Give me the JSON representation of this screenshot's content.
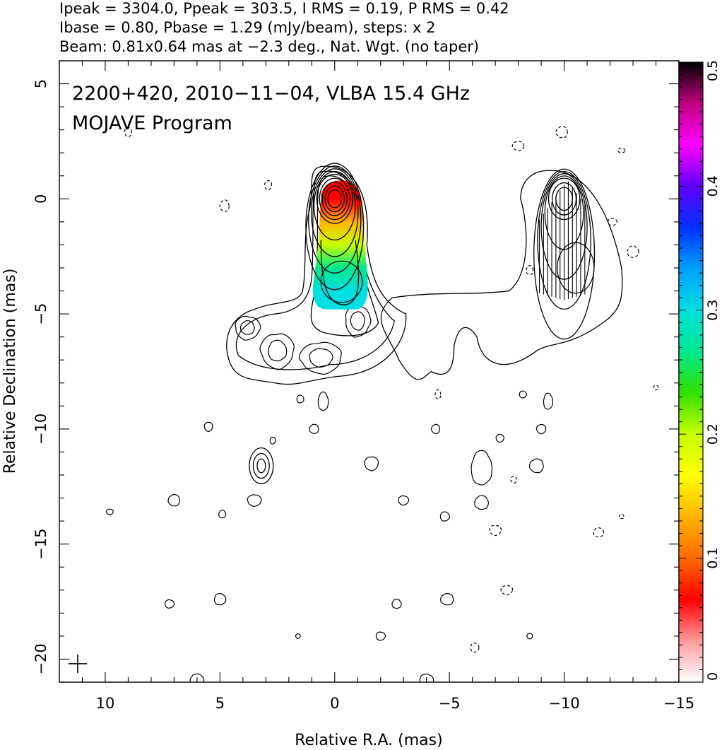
{
  "header": {
    "line1": "Ipeak = 3304.0, Ppeak = 303.5, I RMS = 0.19, P RMS = 0.42",
    "line2": "Ibase = 0.80, Pbase = 1.29 (mJy/beam), steps: x 2",
    "line3": "Beam: 0.81x0.64 mas at −2.3 deg., Nat. Wgt. (no taper)"
  },
  "chart_data": {
    "type": "heatmap",
    "title": "2200+420, 2010−11−04, VLBA 15.4 GHz",
    "subtitle": "MOJAVE Program",
    "xlabel": "Relative R.A. (mas)",
    "ylabel": "Relative Declination (mas)",
    "xlim": [
      12,
      -15
    ],
    "ylim": [
      -21,
      6
    ],
    "x_ticks": [
      10,
      5,
      0,
      -5,
      -10,
      -15
    ],
    "x_tick_labels": [
      "10",
      "5",
      "0",
      "−5",
      "−10",
      "−15"
    ],
    "y_ticks": [
      5,
      0,
      -5,
      -10,
      -15,
      -20
    ],
    "y_tick_labels": [
      "5",
      "0",
      "−5",
      "−10",
      "−15",
      "−20"
    ],
    "colorbar": {
      "min": 0,
      "max": 0.5,
      "ticks": [
        0,
        0.1,
        0.2,
        0.3,
        0.4,
        0.5
      ],
      "tick_labels": [
        "0",
        "0.1",
        "0.2",
        "0.3",
        "0.4",
        "0.5"
      ],
      "colors": [
        "#ffffff",
        "#ff9999",
        "#ff0000",
        "#ff6a00",
        "#ffb400",
        "#ffff00",
        "#c8ff00",
        "#30e000",
        "#00e890",
        "#00e0e0",
        "#00a0ff",
        "#0030ff",
        "#6000ff",
        "#ff00ff",
        "#c00080",
        "#000000"
      ]
    },
    "fractional_polarization_map": {
      "x_range": [
        0.9,
        -1.5
      ],
      "y_range": [
        0.8,
        -4.8
      ],
      "samples": [
        {
          "x": 0.0,
          "y": 0.0,
          "value": 0.08
        },
        {
          "x": 0.0,
          "y": -1.0,
          "value": 0.12
        },
        {
          "x": 0.0,
          "y": -2.0,
          "value": 0.2
        },
        {
          "x": 0.0,
          "y": -3.0,
          "value": 0.25
        },
        {
          "x": -0.3,
          "y": -4.0,
          "value": 0.3
        }
      ]
    },
    "beam": {
      "major_mas": 0.81,
      "minor_mas": 0.64,
      "pa_deg": -2.3,
      "x": 11.2,
      "y": -20.2
    },
    "total_intensity_peak": {
      "x": 0.0,
      "y": 0.0
    },
    "polarization_panel_offset_mas": -10
  }
}
